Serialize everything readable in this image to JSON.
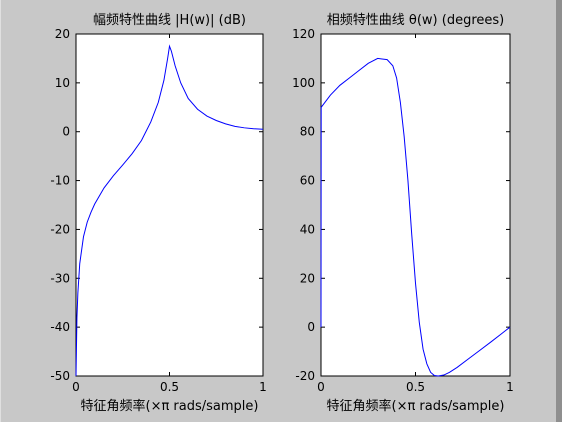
{
  "chart_data": [
    {
      "type": "line",
      "title": "幅频特性曲线 |H(w)| (dB)",
      "xlabel": "特征角频率(×π rads/sample)",
      "ylabel": "",
      "xlim": [
        0,
        1
      ],
      "ylim": [
        -50,
        20
      ],
      "xticks": [
        "0",
        "0.5",
        "1"
      ],
      "yticks": [
        "-50",
        "-40",
        "-30",
        "-20",
        "-10",
        "0",
        "10",
        "20"
      ],
      "grid": false,
      "series": [
        {
          "color": "#0000ff",
          "x": [
            0,
            0.005,
            0.01,
            0.02,
            0.04,
            0.06,
            0.08,
            0.1,
            0.15,
            0.2,
            0.25,
            0.3,
            0.35,
            0.4,
            0.44,
            0.47,
            0.49,
            0.5,
            0.51,
            0.53,
            0.56,
            0.6,
            0.65,
            0.7,
            0.75,
            0.8,
            0.85,
            0.9,
            0.95,
            1.0
          ],
          "values": [
            -50,
            -38,
            -33,
            -27,
            -21.5,
            -18.5,
            -16.5,
            -14.8,
            -11.5,
            -9.0,
            -6.8,
            -4.5,
            -1.8,
            2.0,
            6.0,
            10.5,
            15.0,
            17.5,
            16.5,
            13.5,
            10.0,
            6.8,
            4.6,
            3.2,
            2.3,
            1.6,
            1.1,
            0.8,
            0.6,
            0.5
          ]
        }
      ]
    },
    {
      "type": "line",
      "title": "相频特性曲线 θ(w) (degrees)",
      "xlabel": "特征角频率(×π rads/sample)",
      "ylabel": "",
      "xlim": [
        0,
        1
      ],
      "ylim": [
        -20,
        120
      ],
      "xticks": [
        "0",
        "0.5",
        "1"
      ],
      "yticks": [
        "-20",
        "0",
        "20",
        "40",
        "60",
        "80",
        "100",
        "120"
      ],
      "grid": false,
      "series": [
        {
          "color": "#0000ff",
          "x": [
            0,
            0.001,
            0.05,
            0.1,
            0.15,
            0.2,
            0.25,
            0.3,
            0.35,
            0.38,
            0.4,
            0.42,
            0.44,
            0.46,
            0.48,
            0.5,
            0.52,
            0.54,
            0.56,
            0.58,
            0.6,
            0.62,
            0.65,
            0.68,
            0.72,
            0.78,
            0.84,
            0.9,
            0.95,
            1.0
          ],
          "values": [
            0,
            90,
            95,
            99,
            102,
            105,
            108,
            110,
            109.5,
            107,
            102,
            92,
            78,
            60,
            38,
            18,
            2,
            -9,
            -15,
            -18.5,
            -19.8,
            -20,
            -19.6,
            -18.5,
            -16.5,
            -13,
            -9.5,
            -6,
            -3,
            0
          ]
        }
      ]
    }
  ]
}
